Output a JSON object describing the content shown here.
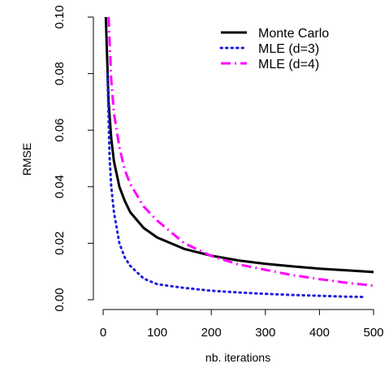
{
  "chart_data": {
    "type": "line",
    "xlabel": "nb. iterations",
    "ylabel": "RMSE",
    "xlim": [
      0,
      500
    ],
    "ylim": [
      0.0,
      0.1
    ],
    "x_ticks": [
      0,
      100,
      200,
      300,
      400,
      500
    ],
    "y_ticks": [
      0.0,
      0.02,
      0.04,
      0.06,
      0.08,
      0.1
    ],
    "x_tick_labels": [
      "0",
      "100",
      "200",
      "300",
      "400",
      "500"
    ],
    "y_tick_labels": [
      "0.00",
      "0.02",
      "0.04",
      "0.06",
      "0.08",
      "0.10"
    ],
    "grid": false,
    "legend_position": "top-right",
    "series": [
      {
        "name": "Monte Carlo",
        "color": "#000000",
        "line_style": "solid",
        "x": [
          5,
          10,
          15,
          20,
          30,
          40,
          50,
          75,
          100,
          150,
          200,
          250,
          300,
          350,
          400,
          450,
          500
        ],
        "y": [
          0.1,
          0.07,
          0.057,
          0.049,
          0.04,
          0.035,
          0.031,
          0.0254,
          0.022,
          0.018,
          0.0156,
          0.0139,
          0.0127,
          0.0118,
          0.011,
          0.0104,
          0.0098
        ]
      },
      {
        "name": "MLE (d=3)",
        "color": "#1f1fdc",
        "line_style": "dotted",
        "x": [
          8,
          12,
          15,
          20,
          30,
          40,
          50,
          75,
          100,
          150,
          200,
          250,
          300,
          350,
          400,
          450,
          480
        ],
        "y": [
          0.08,
          0.05,
          0.04,
          0.031,
          0.02,
          0.015,
          0.012,
          0.0075,
          0.0055,
          0.0042,
          0.0032,
          0.0026,
          0.0021,
          0.0017,
          0.0014,
          0.0011,
          0.001
        ]
      },
      {
        "name": "MLE (d=4)",
        "color": "#ff00ff",
        "line_style": "dashdot",
        "x": [
          10,
          15,
          20,
          30,
          40,
          50,
          75,
          100,
          150,
          200,
          250,
          300,
          350,
          400,
          450,
          500
        ],
        "y": [
          0.1,
          0.078,
          0.066,
          0.054,
          0.046,
          0.041,
          0.033,
          0.028,
          0.02,
          0.0155,
          0.0125,
          0.0106,
          0.0087,
          0.0073,
          0.006,
          0.005
        ]
      }
    ]
  }
}
